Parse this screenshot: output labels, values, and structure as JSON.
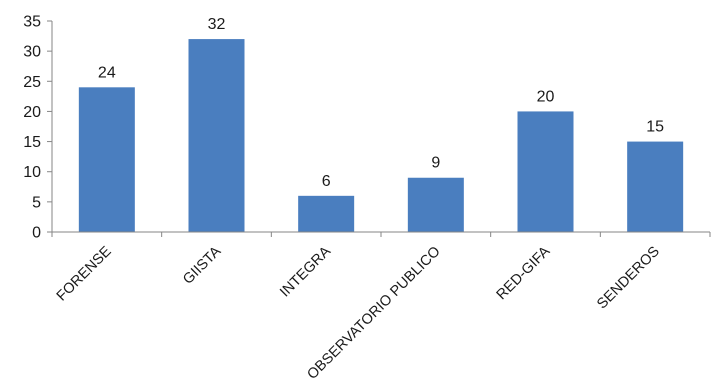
{
  "chart_data": {
    "type": "bar",
    "title": "",
    "xlabel": "",
    "ylabel": "",
    "categories": [
      "FORENSE",
      "GIISTA",
      "INTEGRA",
      "OBSERVATORIO PUBLICO",
      "RED-GIFA",
      "SENDEROS"
    ],
    "values": [
      24,
      32,
      6,
      9,
      20,
      15
    ],
    "data_labels": [
      "24",
      "32",
      "6",
      "9",
      "20",
      "15"
    ],
    "ylim": [
      0,
      35
    ],
    "yticks": [
      0,
      5,
      10,
      15,
      20,
      25,
      30,
      35
    ],
    "ytick_labels": [
      "0",
      "5",
      "10",
      "15",
      "20",
      "25",
      "30",
      "35"
    ],
    "grid": false,
    "legend": "none",
    "bar_color": "#4a7ebf",
    "axis_color": "#868686"
  }
}
